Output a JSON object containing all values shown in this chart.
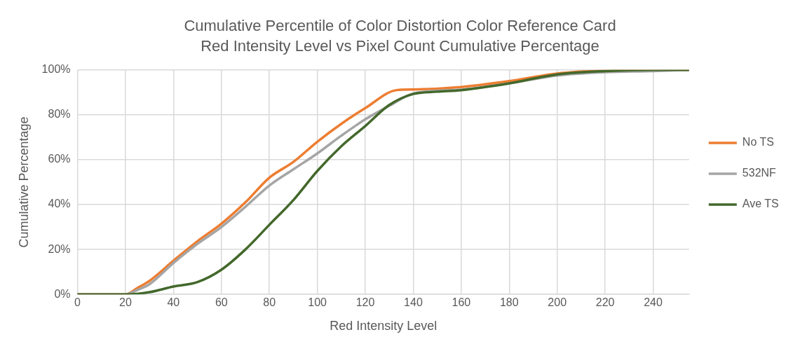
{
  "chart_data": {
    "type": "line",
    "title": "Cumulative Percentile of Color Distortion Color Reference Card",
    "subtitle": "Red Intensity Level vs Pixel Count Cumulative Percentage",
    "xlabel": "Red Intensity Level",
    "ylabel": "Cumulative Percentage",
    "xlim": [
      0,
      255
    ],
    "xticks": [
      0,
      20,
      40,
      60,
      80,
      100,
      120,
      140,
      160,
      180,
      200,
      220,
      240
    ],
    "ylim": [
      0,
      100
    ],
    "yticks": [
      {
        "value": 0,
        "label": "0%"
      },
      {
        "value": 20,
        "label": "20%"
      },
      {
        "value": 40,
        "label": "40%"
      },
      {
        "value": 60,
        "label": "60%"
      },
      {
        "value": 80,
        "label": "80%"
      },
      {
        "value": 100,
        "label": "100%"
      }
    ],
    "grid": true,
    "legend": "right",
    "marker": "none",
    "line_style": "solid",
    "series": [
      {
        "name": "No TS",
        "color": "#ed7d31",
        "x": [
          0,
          10,
          20,
          25,
          30,
          40,
          50,
          60,
          70,
          80,
          90,
          100,
          110,
          120,
          133,
          140,
          160,
          180,
          200,
          220,
          240,
          255
        ],
        "values": [
          0,
          0,
          0,
          2.9,
          6,
          15,
          23.7,
          31.5,
          41,
          52,
          59,
          68,
          76,
          83,
          91,
          91.3,
          92.4,
          95,
          98.4,
          99.7,
          100,
          100
        ]
      },
      {
        "name": "532NF",
        "color": "#a5a5a5",
        "x": [
          0,
          10,
          20,
          25,
          30,
          40,
          50,
          60,
          70,
          80,
          90,
          100,
          110,
          120,
          130,
          140,
          160,
          180,
          200,
          220,
          240,
          255
        ],
        "values": [
          0,
          0,
          0,
          2,
          4.5,
          14,
          22.5,
          30,
          39,
          48.5,
          55.7,
          62.8,
          70.7,
          78,
          84,
          89.5,
          91.2,
          94,
          97.5,
          99,
          99.5,
          100
        ]
      },
      {
        "name": "Ave TS",
        "color": "#43682b",
        "x": [
          0,
          10,
          20,
          30,
          40,
          50,
          60,
          70,
          80,
          90,
          100,
          110,
          120,
          130,
          140,
          150,
          160,
          180,
          200,
          220,
          240,
          255
        ],
        "values": [
          0,
          0,
          0,
          1,
          3.5,
          5.5,
          11,
          20,
          31,
          42,
          55,
          66,
          75,
          84.4,
          89.3,
          90.3,
          91,
          94,
          98,
          99.5,
          100,
          100
        ]
      }
    ]
  }
}
